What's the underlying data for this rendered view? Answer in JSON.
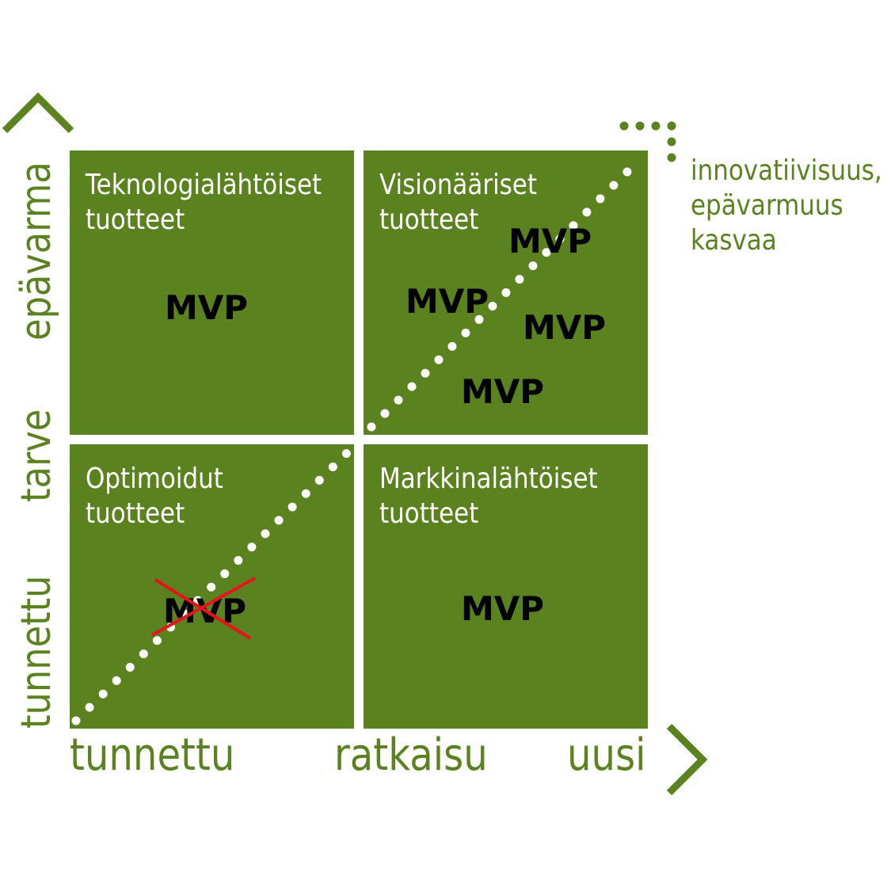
{
  "quadrants": {
    "top_left": {
      "title": [
        "Teknologialähtöiset",
        "tuotteet"
      ],
      "mvp": "MVP"
    },
    "top_right": {
      "title": [
        "Visionääriset",
        "tuotteet"
      ],
      "mvp": [
        "MVP",
        "MVP",
        "MVP",
        "MVP"
      ]
    },
    "bottom_left": {
      "title": [
        "Optimoidut",
        "tuotteet"
      ],
      "mvp": "MVP",
      "mvp_crossed_out": true
    },
    "bottom_right": {
      "title": [
        "Markkinalähtöiset",
        "tuotteet"
      ],
      "mvp": "MVP"
    }
  },
  "x_axis": {
    "left": "tunnettu",
    "center": "ratkaisu",
    "right": "uusi"
  },
  "y_axis": {
    "bottom": "tunnettu",
    "center": "tarve",
    "top": "epävarma"
  },
  "annotation": {
    "lines": [
      "innovatiivisuus,",
      "epävarmuus",
      "kasvaa"
    ]
  },
  "colors": {
    "green": "#5a821e",
    "text_on_green": "#ffffff",
    "mvp_text": "#000000",
    "cross": "#e8141b",
    "dots": "#ffffff"
  }
}
